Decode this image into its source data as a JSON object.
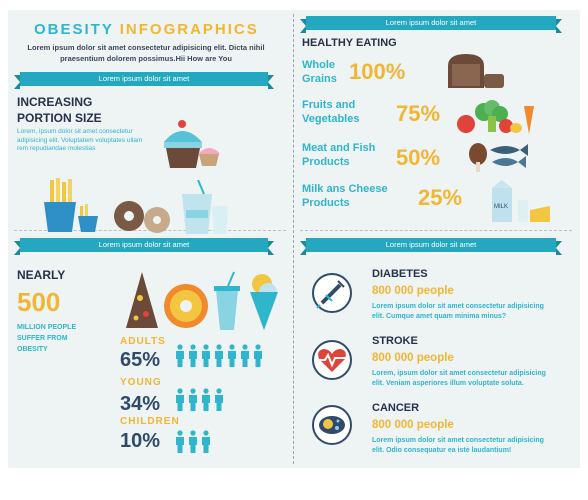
{
  "header": {
    "title_part1": "OBESITY",
    "title_part2": "INFOGRAPHICS",
    "subtitle_line1": "Lorem ipsum dolor sit amet consectetur adipisicing elit. Dicta nihil",
    "subtitle_line2": "praesentium dolorem possimus.Hii How are You"
  },
  "ribbons": {
    "left_top": "Lorem ipsum dolor sit amet",
    "right_top": "Lorem ipsum dolor sit amet",
    "left_bottom": "Lorem ipsum dolor sit amet",
    "right_bottom": "Lorem ipsum dolor sit amet"
  },
  "portion": {
    "heading_line1": "INCREASING",
    "heading_line2": "PORTION SIZE",
    "text_line1": "Lorem, ipsum dolor sit amet consectetur",
    "text_line2": "adipisicing elit. Voluptatem voluptates ullam",
    "text_line3": "rem repudiandae molestias"
  },
  "healthy": {
    "heading": "HEALTHY EATING",
    "items": [
      {
        "label1": "Whole",
        "label2": "Grains",
        "percent": "100%"
      },
      {
        "label1": "Fruits and",
        "label2": "Vegetables",
        "percent": "75%"
      },
      {
        "label1": "Meat and Fish",
        "label2": "Products",
        "percent": "50%"
      },
      {
        "label1": "Milk ans Cheese",
        "label2": "Products",
        "percent": "25%"
      }
    ]
  },
  "nearly": {
    "heading": "NEARLY",
    "number": "500",
    "text_line1": "MILLION PEOPLE",
    "text_line2": "SUFFER FROM",
    "text_line3": "OBESITY",
    "stats": [
      {
        "label": "ADULTS",
        "value": "65%",
        "people": 7
      },
      {
        "label": "YOUNG",
        "value": "34%",
        "people": 4
      },
      {
        "label": "CHILDREN",
        "value": "10%",
        "people": 3
      }
    ]
  },
  "milk_carton_text": "MILK",
  "diseases": [
    {
      "title": "DIABETES",
      "people": "800 000 people",
      "line1": "Lorem ipsum dolor sit amet consectetur adipisicing",
      "line2": "elit. Cumque amet quam minima minus?",
      "icon": "syringe-icon"
    },
    {
      "title": "STROKE",
      "people": "800 000 people",
      "line1": "Lorem, ipsum dolor sit amet consectetur adipisicing",
      "line2": "elit. Veniam asperiores illum voluptate soluta.",
      "icon": "heart-pulse-icon"
    },
    {
      "title": "CANCER",
      "people": "800 000 people",
      "line1": "Lorem ipsum dolor sit amet consectetur adipisicing",
      "line2": "elit. Odio consequatur ea iste laudantium!",
      "icon": "cell-icon"
    }
  ],
  "colors": {
    "teal": "#2fb6cc",
    "yellow": "#f2b632",
    "navy": "#26324a",
    "ribbon": "#23a8bf"
  }
}
